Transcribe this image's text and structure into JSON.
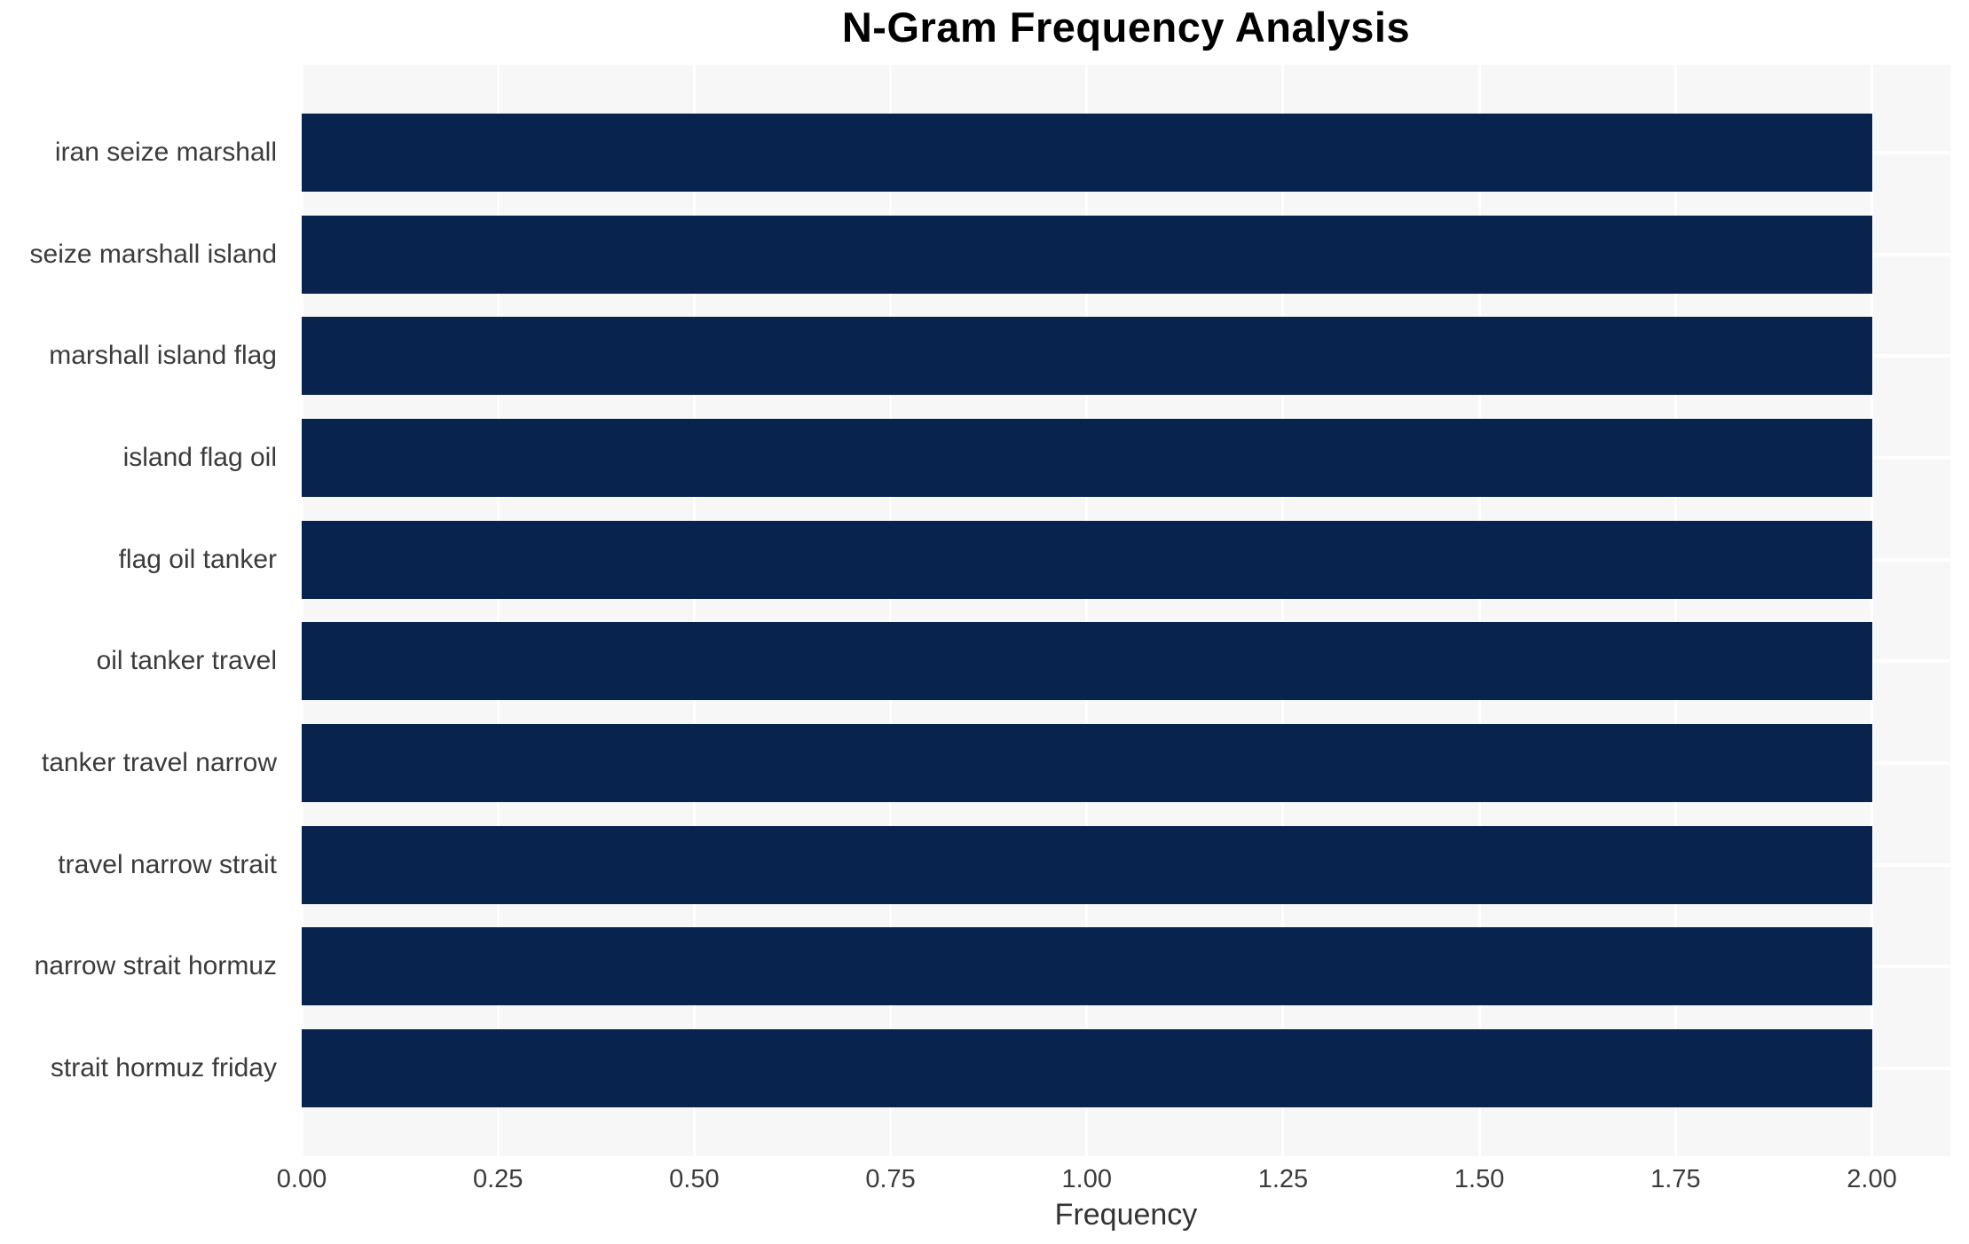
{
  "chart_data": {
    "type": "bar",
    "orientation": "horizontal",
    "title": "N-Gram Frequency Analysis",
    "xlabel": "Frequency",
    "ylabel": "",
    "categories": [
      "iran seize marshall",
      "seize marshall island",
      "marshall island flag",
      "island flag oil",
      "flag oil tanker",
      "oil tanker travel",
      "tanker travel narrow",
      "travel narrow strait",
      "narrow strait hormuz",
      "strait hormuz friday"
    ],
    "values": [
      2,
      2,
      2,
      2,
      2,
      2,
      2,
      2,
      2,
      2
    ],
    "xlim": [
      0,
      2.1
    ],
    "xticks": [
      0,
      0.25,
      0.5,
      0.75,
      1,
      1.25,
      1.5,
      1.75,
      2
    ],
    "xtick_labels": [
      "0.00",
      "0.25",
      "0.50",
      "0.75",
      "1.00",
      "1.25",
      "1.50",
      "1.75",
      "2.00"
    ],
    "grid": true,
    "legend": false,
    "colors": {
      "bar": "#08234d",
      "plot_background": "#f7f7f8",
      "gridline": "#ffffff",
      "tick_text": "#3b3b3b",
      "title_text": "#000000",
      "axis_label_text": "#333333"
    }
  }
}
